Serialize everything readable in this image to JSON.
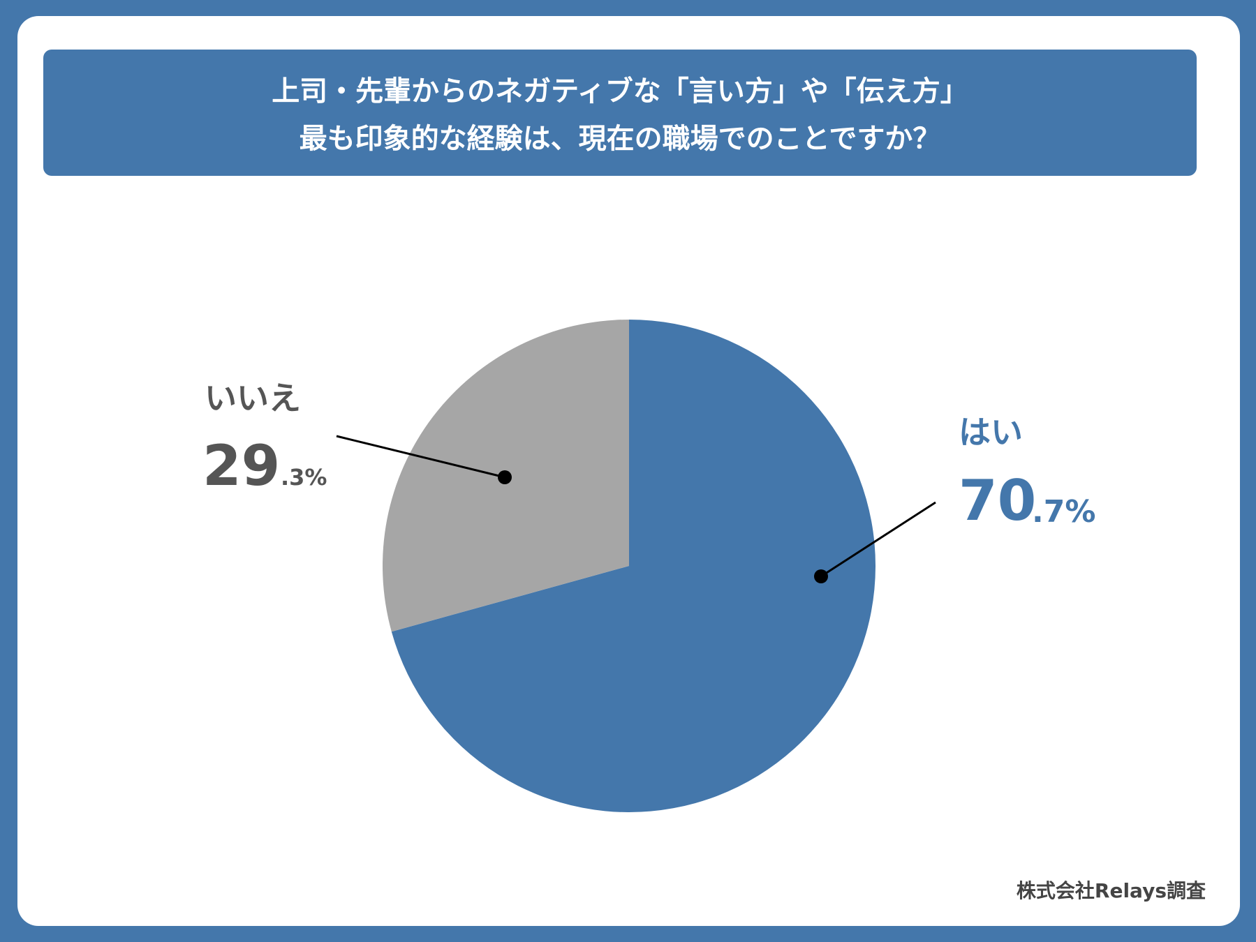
{
  "chart_data": {
    "type": "pie",
    "title": [
      "上司・先輩からのネガティブな「言い方」や「伝え方」",
      "最も印象的な経験は、現在の職場でのことですか？"
    ],
    "categories": [
      "はい",
      "いいえ"
    ],
    "values": [
      70.7,
      29.3
    ],
    "value_labels": [
      [
        "70",
        ".7%"
      ],
      [
        "29",
        ".3%"
      ]
    ],
    "colors": [
      "#4477ab",
      "#a6a6a6"
    ],
    "source": "株式会社Relays調査"
  }
}
